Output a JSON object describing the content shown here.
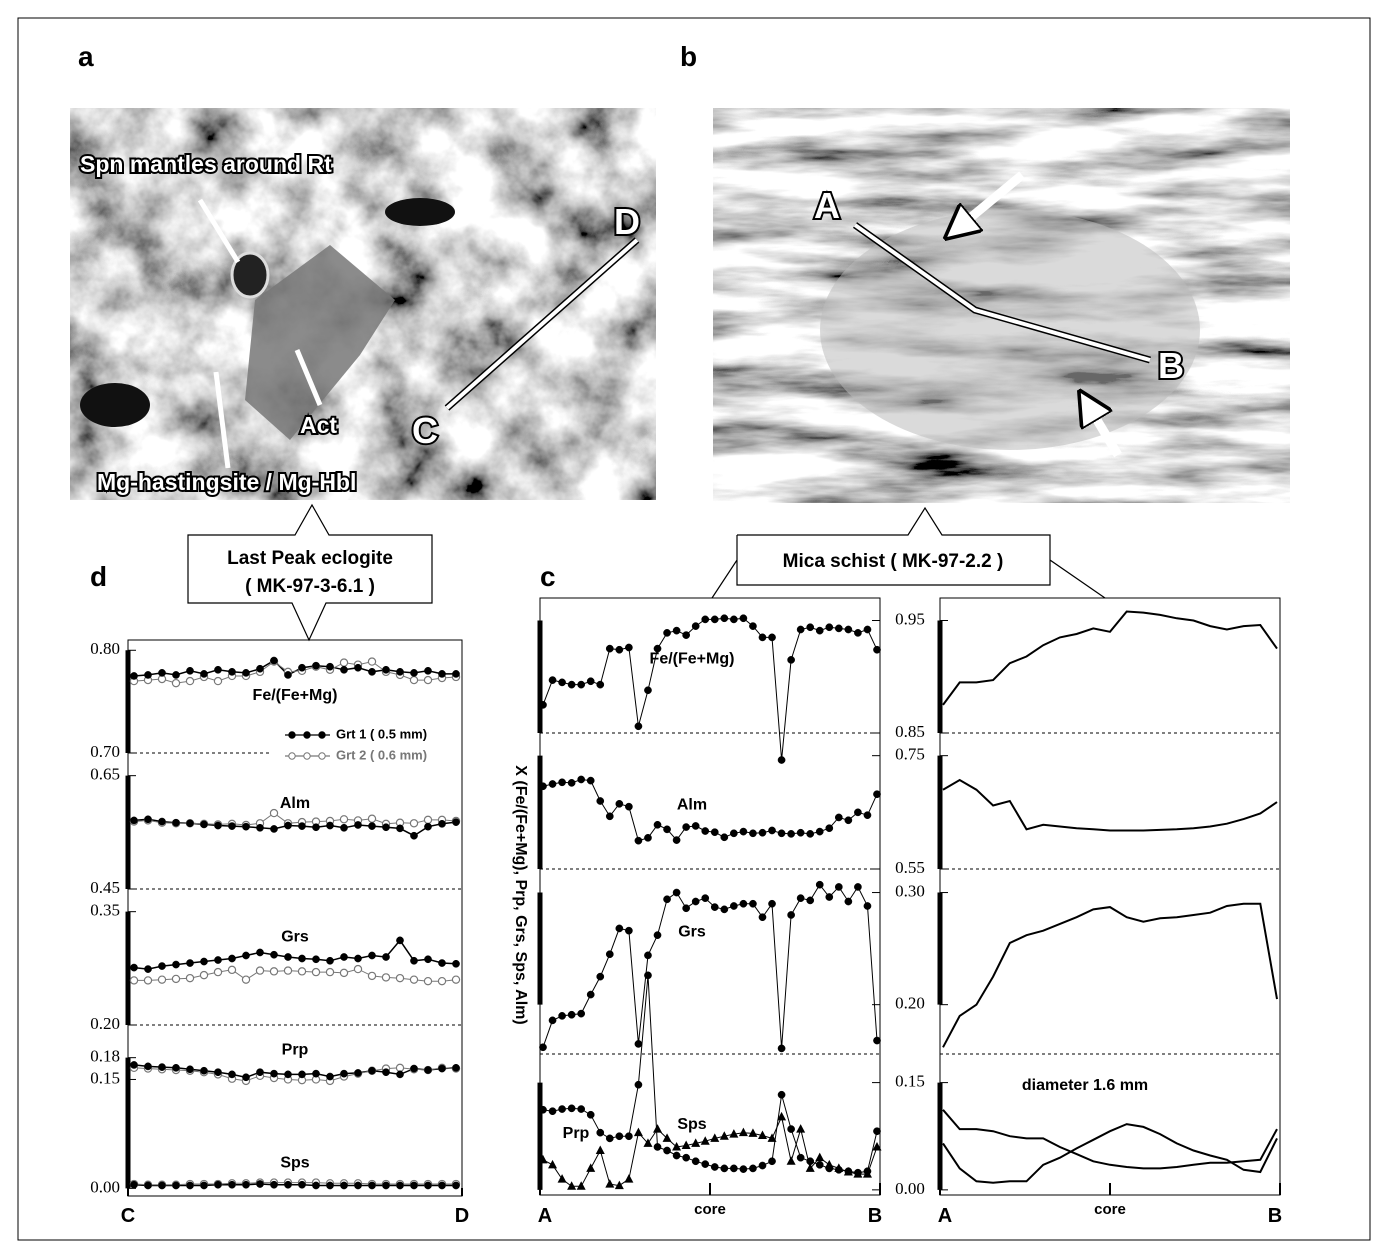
{
  "photos": [
    {
      "panel": "a",
      "labels": [
        "Spn mantles around Rt",
        "Act",
        "Mg-hastingsite / Mg-Hbl",
        "C",
        "D"
      ]
    },
    {
      "panel": "b",
      "labels": [
        "A",
        "B"
      ]
    }
  ],
  "callouts": [
    {
      "lines": [
        "Last Peak eclogite",
        "( MK-97-3-6.1 )"
      ]
    },
    {
      "lines": [
        "Mica schist  ( MK-97-2.2 )"
      ]
    }
  ],
  "chart_data": [
    {
      "type": "line",
      "panel": "d",
      "xlim": [
        0,
        1
      ],
      "xticks": [
        {
          "value": 0,
          "label": "C"
        },
        {
          "value": 1,
          "label": "D"
        }
      ],
      "series": [
        {
          "name": "Grt 1 ( 0.5 mm)",
          "color": "#000000",
          "marker": "filled"
        },
        {
          "name": "Grt 2 ( 0.6 mm)",
          "color": "#777777",
          "marker": "open"
        }
      ],
      "panels": [
        {
          "ylim": [
            0.7,
            0.81
          ],
          "yticks": [
            {
              "value": 0.7,
              "label": "0.70"
            },
            {
              "value": 0.8,
              "label": "0.80"
            }
          ],
          "components": [
            {
              "label": "Fe/(Fe+Mg)",
              "values": [
                [
                  0.775,
                  0.776,
                  0.778,
                  0.776,
                  0.78,
                  0.777,
                  0.781,
                  0.779,
                  0.778,
                  0.782,
                  0.79,
                  0.776,
                  0.783,
                  0.785,
                  0.784,
                  0.781,
                  0.783,
                  0.779,
                  0.781,
                  0.779,
                  0.778,
                  0.78,
                  0.777,
                  0.777
                ],
                [
                  0.77,
                  0.771,
                  0.772,
                  0.768,
                  0.77,
                  0.774,
                  0.77,
                  0.775,
                  0.775,
                  0.779,
                  0.789,
                  0.779,
                  0.78,
                  0.784,
                  0.781,
                  0.788,
                  0.786,
                  0.789,
                  0.779,
                  0.776,
                  0.771,
                  0.771,
                  0.773,
                  0.774
                ]
              ]
            }
          ]
        },
        {
          "ylim": [
            0.45,
            0.69
          ],
          "yticks": [
            {
              "value": 0.45,
              "label": "0.45"
            },
            {
              "value": 0.65,
              "label": "0.65"
            }
          ],
          "components": [
            {
              "label": "Alm",
              "values": [
                [
                  0.571,
                  0.573,
                  0.569,
                  0.567,
                  0.566,
                  0.564,
                  0.562,
                  0.561,
                  0.56,
                  0.558,
                  0.556,
                  0.562,
                  0.561,
                  0.559,
                  0.562,
                  0.558,
                  0.563,
                  0.561,
                  0.559,
                  0.557,
                  0.544,
                  0.56,
                  0.565,
                  0.568
                ],
                [
                  0.569,
                  0.571,
                  0.567,
                  0.566,
                  0.566,
                  0.565,
                  0.564,
                  0.565,
                  0.563,
                  0.566,
                  0.584,
                  0.566,
                  0.568,
                  0.569,
                  0.57,
                  0.573,
                  0.571,
                  0.574,
                  0.565,
                  0.567,
                  0.566,
                  0.572,
                  0.572,
                  0.57
                ]
              ]
            }
          ]
        },
        {
          "ylim": [
            0.2,
            0.38
          ],
          "yticks": [
            {
              "value": 0.2,
              "label": "0.20"
            },
            {
              "value": 0.35,
              "label": "0.35"
            }
          ],
          "components": [
            {
              "label": "Grs",
              "values": [
                [
                  0.276,
                  0.274,
                  0.278,
                  0.28,
                  0.282,
                  0.284,
                  0.286,
                  0.288,
                  0.292,
                  0.296,
                  0.293,
                  0.29,
                  0.288,
                  0.287,
                  0.285,
                  0.29,
                  0.288,
                  0.292,
                  0.29,
                  0.312,
                  0.285,
                  0.287,
                  0.282,
                  0.281
                ],
                [
                  0.259,
                  0.259,
                  0.26,
                  0.261,
                  0.262,
                  0.266,
                  0.27,
                  0.273,
                  0.26,
                  0.272,
                  0.271,
                  0.272,
                  0.271,
                  0.27,
                  0.27,
                  0.269,
                  0.274,
                  0.265,
                  0.263,
                  0.262,
                  0.26,
                  0.258,
                  0.258,
                  0.26
                ]
              ]
            }
          ]
        },
        {
          "ylim": [
            -0.005,
            0.225
          ],
          "yticks": [
            {
              "value": 0,
              "label": "0.00"
            },
            {
              "value": 0.15,
              "label": "0.15"
            },
            {
              "value": 0.18,
              "label": "0.18"
            }
          ],
          "components": [
            {
              "label": "Prp",
              "values": [
                [
                  0.17,
                  0.168,
                  0.167,
                  0.166,
                  0.164,
                  0.162,
                  0.16,
                  0.157,
                  0.153,
                  0.16,
                  0.158,
                  0.157,
                  0.157,
                  0.158,
                  0.154,
                  0.158,
                  0.159,
                  0.162,
                  0.16,
                  0.157,
                  0.165,
                  0.163,
                  0.165,
                  0.166
                ],
                [
                  0.166,
                  0.165,
                  0.164,
                  0.163,
                  0.162,
                  0.16,
                  0.157,
                  0.151,
                  0.148,
                  0.155,
                  0.152,
                  0.15,
                  0.149,
                  0.15,
                  0.148,
                  0.154,
                  0.158,
                  0.162,
                  0.165,
                  0.166,
                  0.164,
                  0.163,
                  0.166,
                  0.165
                ]
              ]
            },
            {
              "label": "Sps",
              "values": [
                [
                  0.005,
                  0.004,
                  0.004,
                  0.004,
                  0.004,
                  0.004,
                  0.005,
                  0.005,
                  0.005,
                  0.006,
                  0.005,
                  0.005,
                  0.005,
                  0.004,
                  0.004,
                  0.004,
                  0.004,
                  0.004,
                  0.004,
                  0.004,
                  0.004,
                  0.004,
                  0.004,
                  0.004
                ],
                [
                  0.006,
                  0.005,
                  0.005,
                  0.005,
                  0.006,
                  0.006,
                  0.006,
                  0.007,
                  0.007,
                  0.008,
                  0.008,
                  0.008,
                  0.008,
                  0.008,
                  0.007,
                  0.007,
                  0.007,
                  0.006,
                  0.006,
                  0.006,
                  0.006,
                  0.006,
                  0.006,
                  0.006
                ]
              ]
            }
          ]
        }
      ]
    },
    {
      "type": "line",
      "panel": "c",
      "color": "#000000",
      "y_label": "X (Fe/(Fe+Mg), Prp, Grs, Sps, Alm)",
      "plots": [
        {
          "xlim": [
            0,
            1
          ],
          "xticks": [
            {
              "value": 0,
              "label": "A"
            },
            {
              "value": 0.5,
              "label": "core"
            },
            {
              "value": 1,
              "label": "B"
            }
          ]
        },
        {
          "xlim": [
            0,
            1
          ],
          "xticks": [
            {
              "value": 0,
              "label": "A"
            },
            {
              "value": 0.5,
              "label": "core"
            },
            {
              "value": 1,
              "label": "B"
            }
          ],
          "annotation": "diameter 1.6 mm"
        }
      ],
      "panels": [
        {
          "ylim": [
            0.85,
            0.97
          ],
          "yticks": [
            {
              "value": 0.85,
              "label": "0.85"
            },
            {
              "value": 0.95,
              "label": "0.95"
            }
          ],
          "components": [
            {
              "label": "Fe/(Fe+Mg)",
              "marker": "circle",
              "values": [
                0.875,
                0.897,
                0.895,
                0.893,
                0.893,
                0.896,
                0.893,
                0.925,
                0.924,
                0.926,
                0.856,
                0.888,
                0.925,
                0.939,
                0.941,
                0.937,
                0.945,
                0.951,
                0.951,
                0.952,
                0.951,
                0.952,
                0.945,
                0.935,
                0.935,
                0.826,
                0.915,
                0.942,
                0.944,
                0.941,
                0.944,
                0.943,
                0.942,
                0.939,
                0.942,
                0.924
              ],
              "model": [
                0.875,
                0.895,
                0.895,
                0.897,
                0.912,
                0.918,
                0.928,
                0.935,
                0.938,
                0.943,
                0.94,
                0.958,
                0.957,
                0.955,
                0.952,
                0.95,
                0.945,
                0.942,
                0.945,
                0.946,
                0.925
              ]
            }
          ]
        },
        {
          "ylim": [
            0.55,
            0.79
          ],
          "yticks": [
            {
              "value": 0.55,
              "label": "0.55"
            },
            {
              "value": 0.75,
              "label": "0.75"
            }
          ],
          "components": [
            {
              "label": "Alm",
              "marker": "circle",
              "values": [
                0.696,
                0.7,
                0.703,
                0.702,
                0.708,
                0.706,
                0.67,
                0.643,
                0.665,
                0.66,
                0.6,
                0.605,
                0.628,
                0.62,
                0.601,
                0.624,
                0.626,
                0.617,
                0.615,
                0.606,
                0.613,
                0.616,
                0.613,
                0.614,
                0.618,
                0.613,
                0.612,
                0.614,
                0.612,
                0.616,
                0.622,
                0.641,
                0.636,
                0.65,
                0.645,
                0.682
              ],
              "model": [
                0.69,
                0.707,
                0.69,
                0.662,
                0.67,
                0.62,
                0.628,
                0.625,
                0.622,
                0.62,
                0.618,
                0.618,
                0.618,
                0.619,
                0.62,
                0.622,
                0.625,
                0.63,
                0.638,
                0.648,
                0.668
              ]
            }
          ]
        },
        {
          "ylim": [
            0.156,
            0.321
          ],
          "yticks": [
            {
              "value": 0.2,
              "label": "0.20"
            },
            {
              "value": 0.3,
              "label": "0.30"
            }
          ],
          "components": [
            {
              "label": "Grs",
              "marker": "circle",
              "values": [
                0.162,
                0.186,
                0.19,
                0.191,
                0.192,
                0.209,
                0.225,
                0.245,
                0.268,
                0.266,
                0.165,
                0.244,
                0.262,
                0.294,
                0.3,
                0.286,
                0.292,
                0.295,
                0.287,
                0.285,
                0.288,
                0.29,
                0.29,
                0.278,
                0.29,
                0.161,
                0.28,
                0.295,
                0.293,
                0.307,
                0.296,
                0.305,
                0.292,
                0.305,
                0.288,
                0.168
              ],
              "model": [
                0.162,
                0.19,
                0.2,
                0.225,
                0.255,
                0.262,
                0.266,
                0.272,
                0.278,
                0.285,
                0.287,
                0.278,
                0.274,
                0.277,
                0.278,
                0.28,
                0.282,
                0.288,
                0.29,
                0.29,
                0.205
              ]
            }
          ]
        },
        {
          "ylim": [
            -0.003,
            0.19
          ],
          "yticks": [
            {
              "value": 0,
              "label": "0.00"
            },
            {
              "value": 0.15,
              "label": "0.15"
            }
          ],
          "components": [
            {
              "label": "Prp",
              "marker": "circle",
              "values": [
                0.112,
                0.11,
                0.113,
                0.114,
                0.113,
                0.105,
                0.08,
                0.072,
                0.075,
                0.075,
                0.147,
                0.3,
                0.06,
                0.055,
                0.048,
                0.045,
                0.04,
                0.036,
                0.032,
                0.03,
                0.03,
                0.029,
                0.03,
                0.034,
                0.04,
                0.133,
                0.085,
                0.045,
                0.04,
                0.035,
                0.03,
                0.028,
                0.026,
                0.024,
                0.026,
                0.082
              ],
              "model": [
                0.112,
                0.085,
                0.085,
                0.082,
                0.075,
                0.072,
                0.072,
                0.06,
                0.05,
                0.04,
                0.035,
                0.032,
                0.03,
                0.03,
                0.032,
                0.035,
                0.038,
                0.038,
                0.04,
                0.042,
                0.085
              ]
            },
            {
              "label": "Sps",
              "marker": "triangle",
              "values": [
                0.042,
                0.035,
                0.015,
                0.005,
                0.005,
                0.03,
                0.055,
                0.008,
                0.006,
                0.015,
                0.08,
                0.065,
                0.085,
                0.072,
                0.06,
                0.062,
                0.065,
                0.068,
                0.072,
                0.075,
                0.078,
                0.08,
                0.079,
                0.076,
                0.072,
                0.102,
                0.04,
                0.085,
                0.03,
                0.045,
                0.035,
                0.03,
                0.025,
                0.022,
                0.022,
                0.06
              ],
              "model": [
                0.065,
                0.03,
                0.012,
                0.01,
                0.012,
                0.012,
                0.035,
                0.045,
                0.058,
                0.07,
                0.082,
                0.092,
                0.088,
                0.078,
                0.065,
                0.055,
                0.048,
                0.042,
                0.028,
                0.025,
                0.072
              ]
            }
          ]
        }
      ]
    }
  ]
}
